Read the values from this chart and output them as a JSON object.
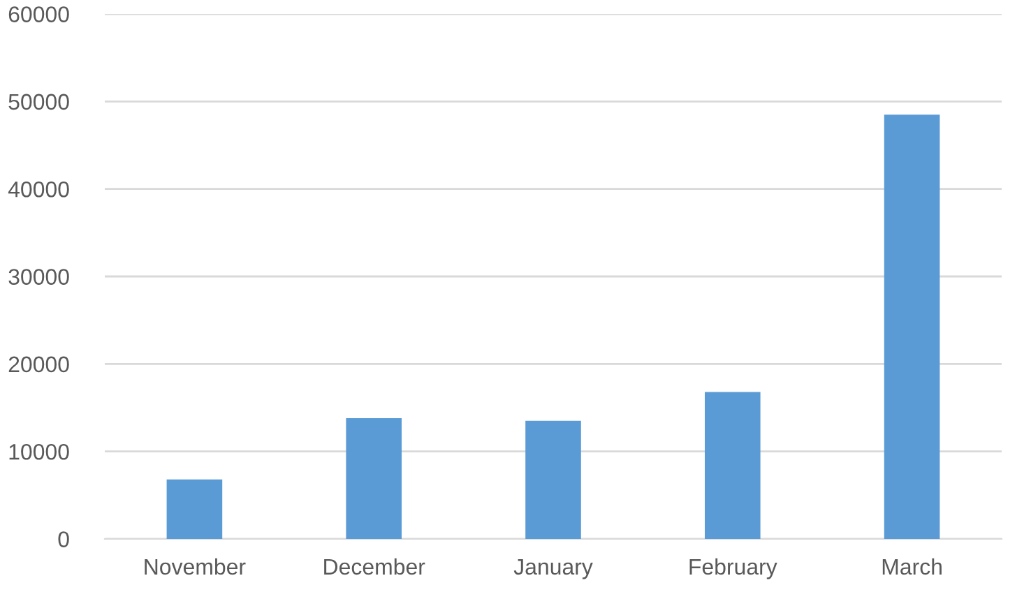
{
  "chart_data": {
    "type": "bar",
    "categories": [
      "November",
      "December",
      "January",
      "February",
      "March"
    ],
    "values": [
      6800,
      13800,
      13500,
      16800,
      48500
    ],
    "color": "#5b9bd5",
    "ylim": [
      0,
      60000
    ],
    "yticks": [
      0,
      10000,
      20000,
      30000,
      40000,
      50000,
      60000
    ],
    "grid": "y",
    "legend": false
  }
}
